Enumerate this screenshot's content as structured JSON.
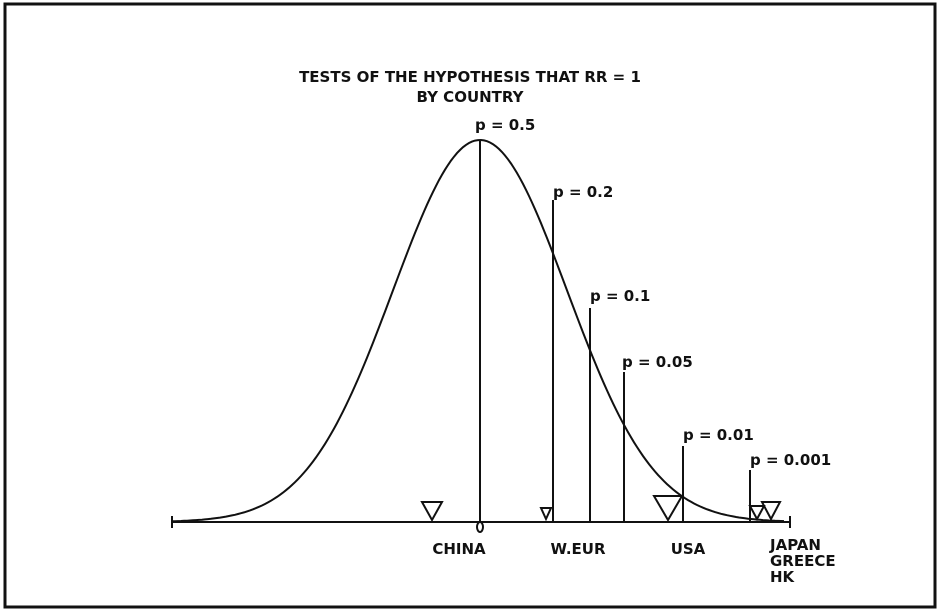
{
  "title": {
    "line1": "TESTS OF THE HYPOTHESIS THAT RR = 1",
    "line2": "BY COUNTRY"
  },
  "p_labels": [
    "p = 0.5",
    "p = 0.2",
    "p = 0.1",
    "p = 0.05",
    "p = 0.01",
    "p = 0.001"
  ],
  "countries": [
    "CHINA",
    "W.EUR",
    "USA",
    "JAPAN",
    "GREECE",
    "HK"
  ]
}
